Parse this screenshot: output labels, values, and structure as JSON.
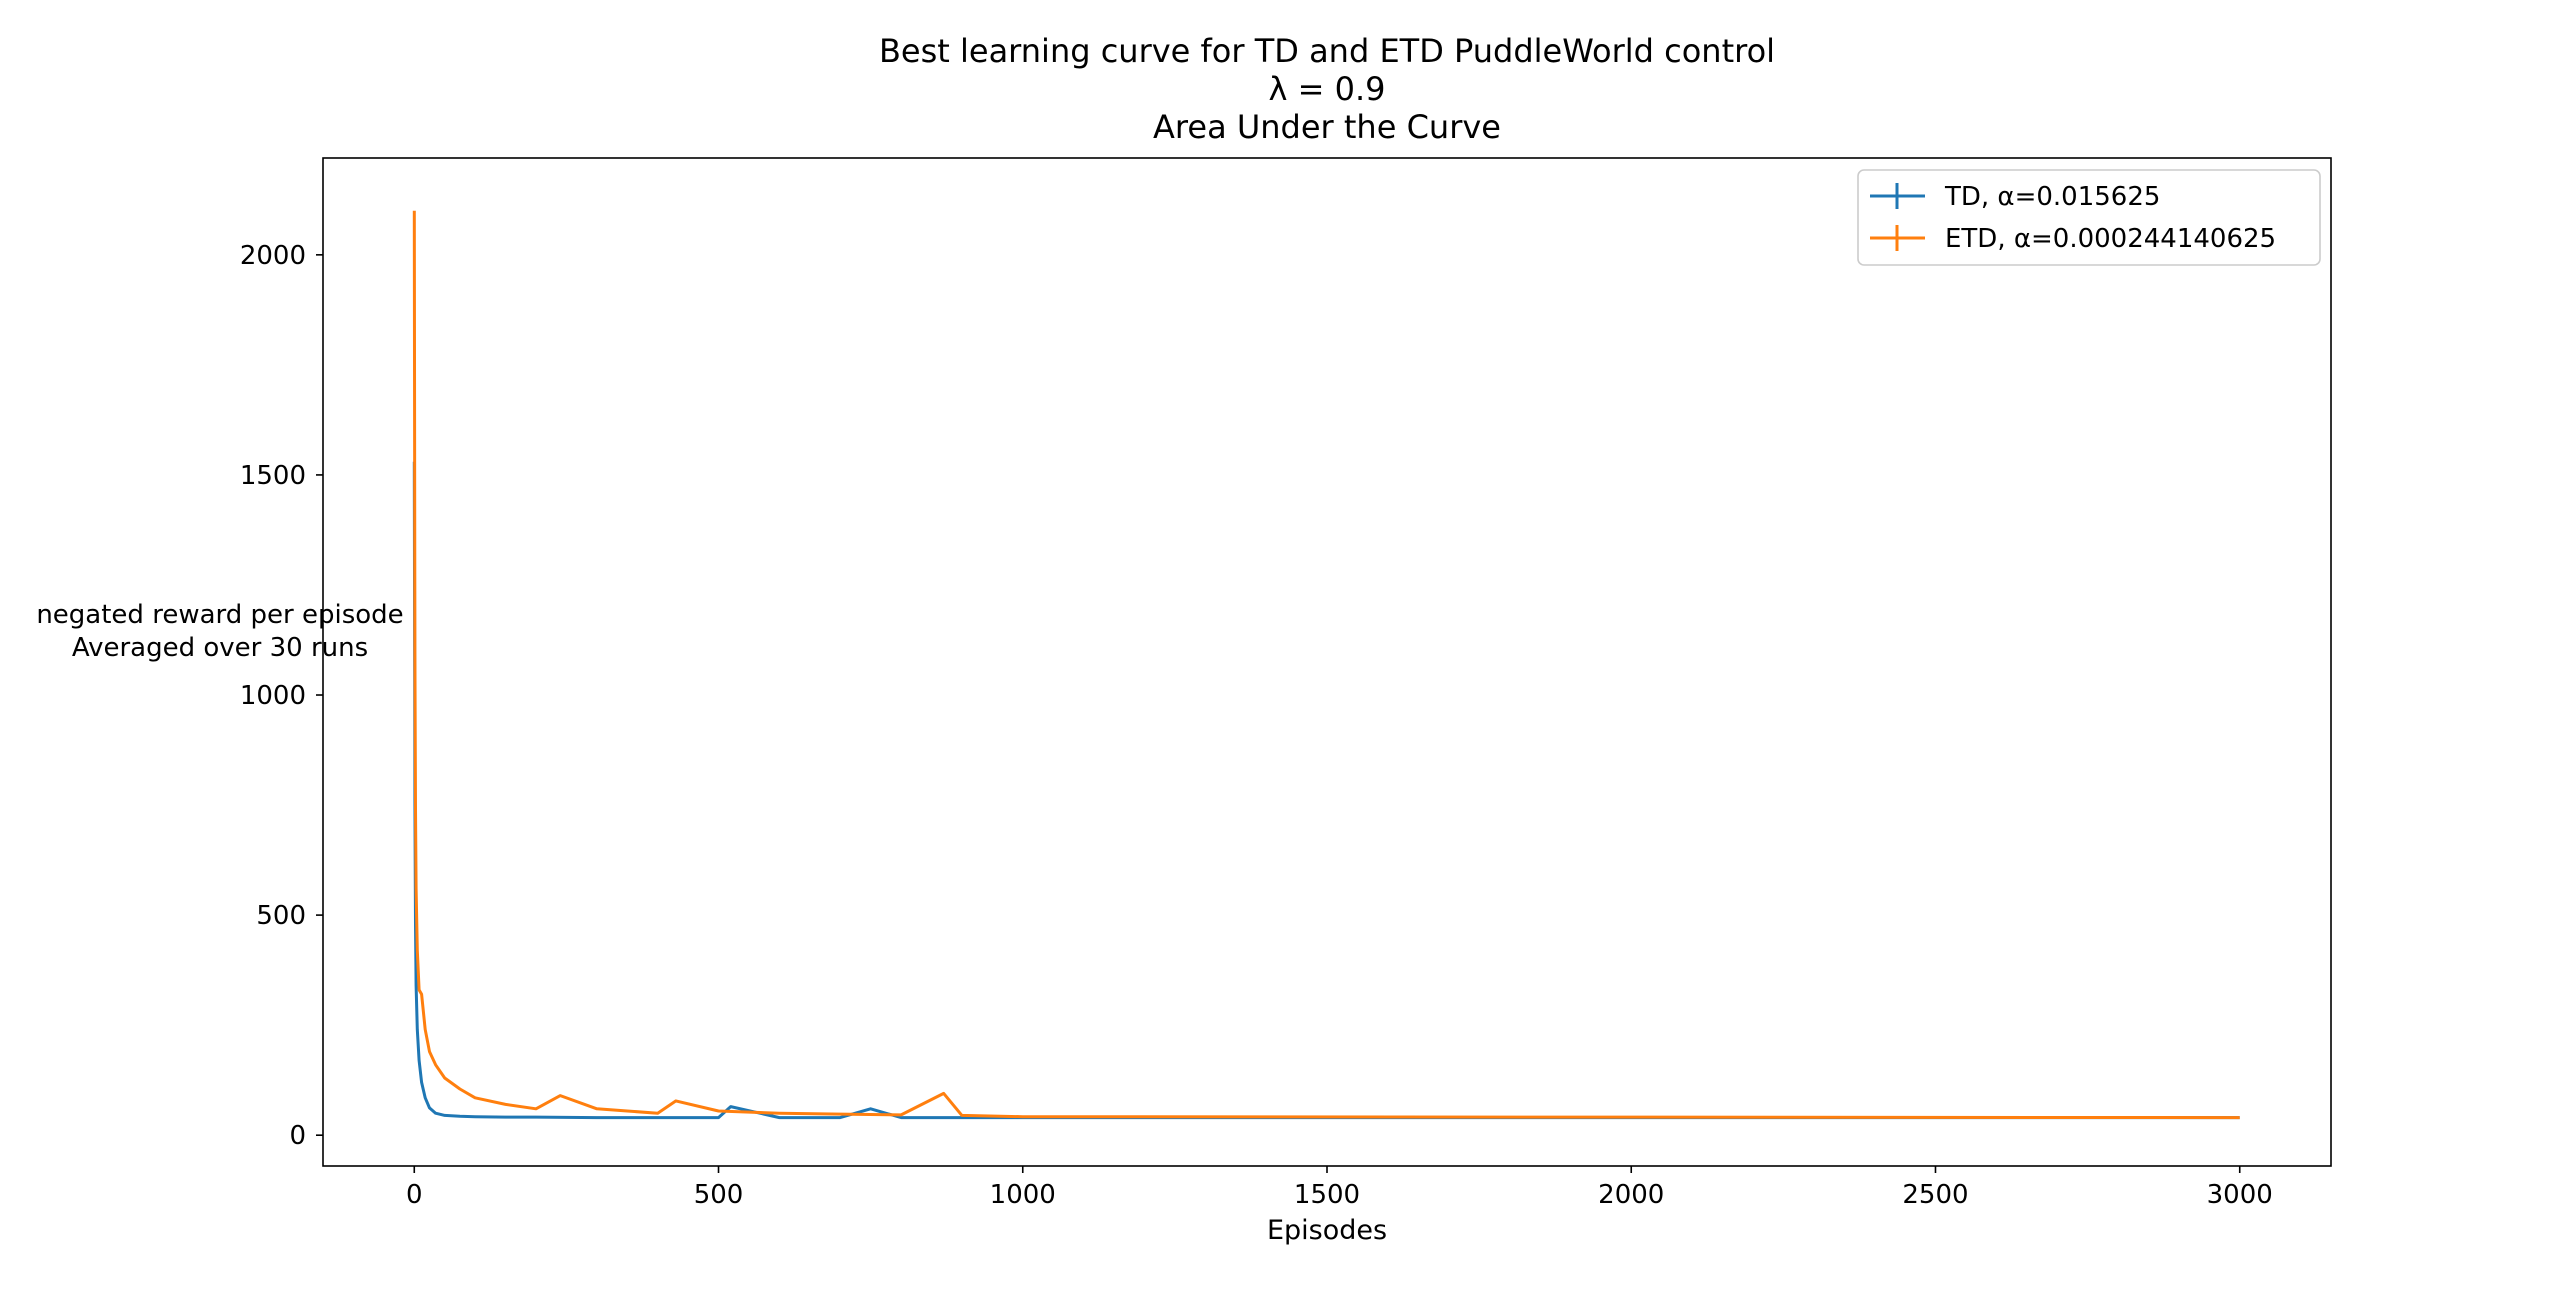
{
  "chart_data": {
    "type": "line",
    "title": [
      "Best learning curve for TD and ETD PuddleWorld control",
      "λ = 0.9",
      "Area Under the Curve"
    ],
    "xlabel": "Episodes",
    "ylabel": [
      "negated reward per episode",
      "Averaged over 30 runs"
    ],
    "xlim": [
      -150,
      3150
    ],
    "ylim": [
      -70,
      2220
    ],
    "xticks": [
      0,
      500,
      1000,
      1500,
      2000,
      2500,
      3000
    ],
    "yticks": [
      0,
      500,
      1000,
      1500,
      2000
    ],
    "grid": false,
    "legend_position": "top-right",
    "series": [
      {
        "name": "TD, α=0.015625",
        "color": "#1f77b4",
        "x": [
          0,
          1,
          2,
          3,
          5,
          8,
          12,
          18,
          25,
          35,
          50,
          75,
          100,
          150,
          200,
          300,
          400,
          500,
          520,
          600,
          700,
          750,
          800,
          900,
          1000,
          3000
        ],
        "y": [
          1530,
          760,
          480,
          340,
          240,
          170,
          120,
          85,
          62,
          50,
          45,
          43,
          42,
          41,
          41,
          40,
          40,
          40,
          65,
          40,
          40,
          60,
          40,
          40,
          40,
          40
        ]
      },
      {
        "name": "ETD, α=0.000244140625",
        "color": "#ff7f0e",
        "x": [
          0,
          1,
          2,
          3,
          5,
          8,
          12,
          18,
          25,
          35,
          50,
          75,
          100,
          150,
          200,
          240,
          300,
          350,
          400,
          430,
          500,
          600,
          700,
          800,
          870,
          900,
          1000,
          3000
        ],
        "y": [
          2100,
          1100,
          740,
          560,
          420,
          330,
          320,
          240,
          190,
          160,
          130,
          105,
          85,
          70,
          60,
          90,
          60,
          55,
          50,
          78,
          55,
          50,
          48,
          46,
          95,
          45,
          42,
          40
        ]
      }
    ]
  }
}
